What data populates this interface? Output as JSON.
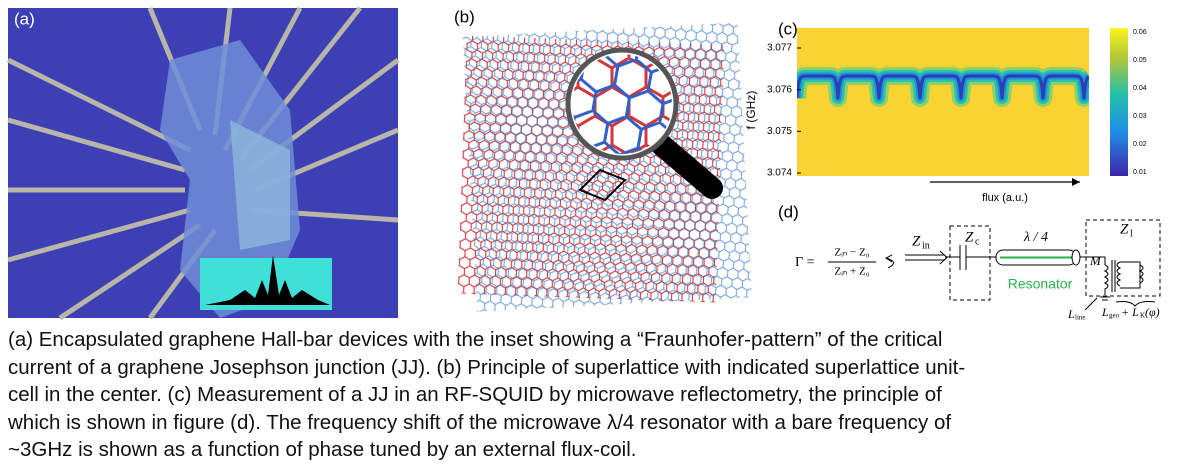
{
  "figure": {
    "panel_a": {
      "label": "(a)"
    },
    "panel_b": {
      "label": "(b)"
    },
    "panel_c": {
      "label": "(c)",
      "y_label": "f (GHz)",
      "y_ticks": [
        "3.077",
        "3.076",
        "3.075",
        "3.074"
      ],
      "x_label": "flux (a.u.)",
      "colorbar_ticks": [
        "0.06",
        "0.05",
        "0.04",
        "0.03",
        "0.02",
        "0.01"
      ]
    },
    "panel_d": {
      "label": "(d)",
      "gamma": "Γ =",
      "numerator": "Zᵢₙ − Z₀",
      "denominator": "Zᵢₙ + Z₀",
      "z_in": {
        "symbol": "Z",
        "sub": "in"
      },
      "z_c": {
        "symbol": "Z",
        "sub": "c"
      },
      "quarter_wave": "λ / 4",
      "z_l": {
        "symbol": "Z",
        "sub": "l"
      },
      "mutual": "M",
      "resonator": "Resonator",
      "l_line": {
        "symbol": "L",
        "sub": "line"
      },
      "l_geo": {
        "symbol": "L",
        "sub": "geo",
        "plus": "+ L",
        "sub_k": "K",
        "phi": "(φ)"
      }
    }
  },
  "caption": {
    "lines": [
      "(a) Encapsulated graphene Hall-bar devices with the inset showing a “Fraunhofer-pattern” of the critical",
      "current of a graphene Josephson junction (JJ). (b) Principle of superlattice with indicated superlattice unit-",
      "cell in the center. (c) Measurement of a JJ in an RF-SQUID by microwave reflectometry, the principle of",
      "which is shown in figure (d). The frequency shift of the microwave λ/4 resonator with a bare frequency of",
      "~3GHz is shown as a function of phase tuned by an external flux-coil."
    ]
  }
}
